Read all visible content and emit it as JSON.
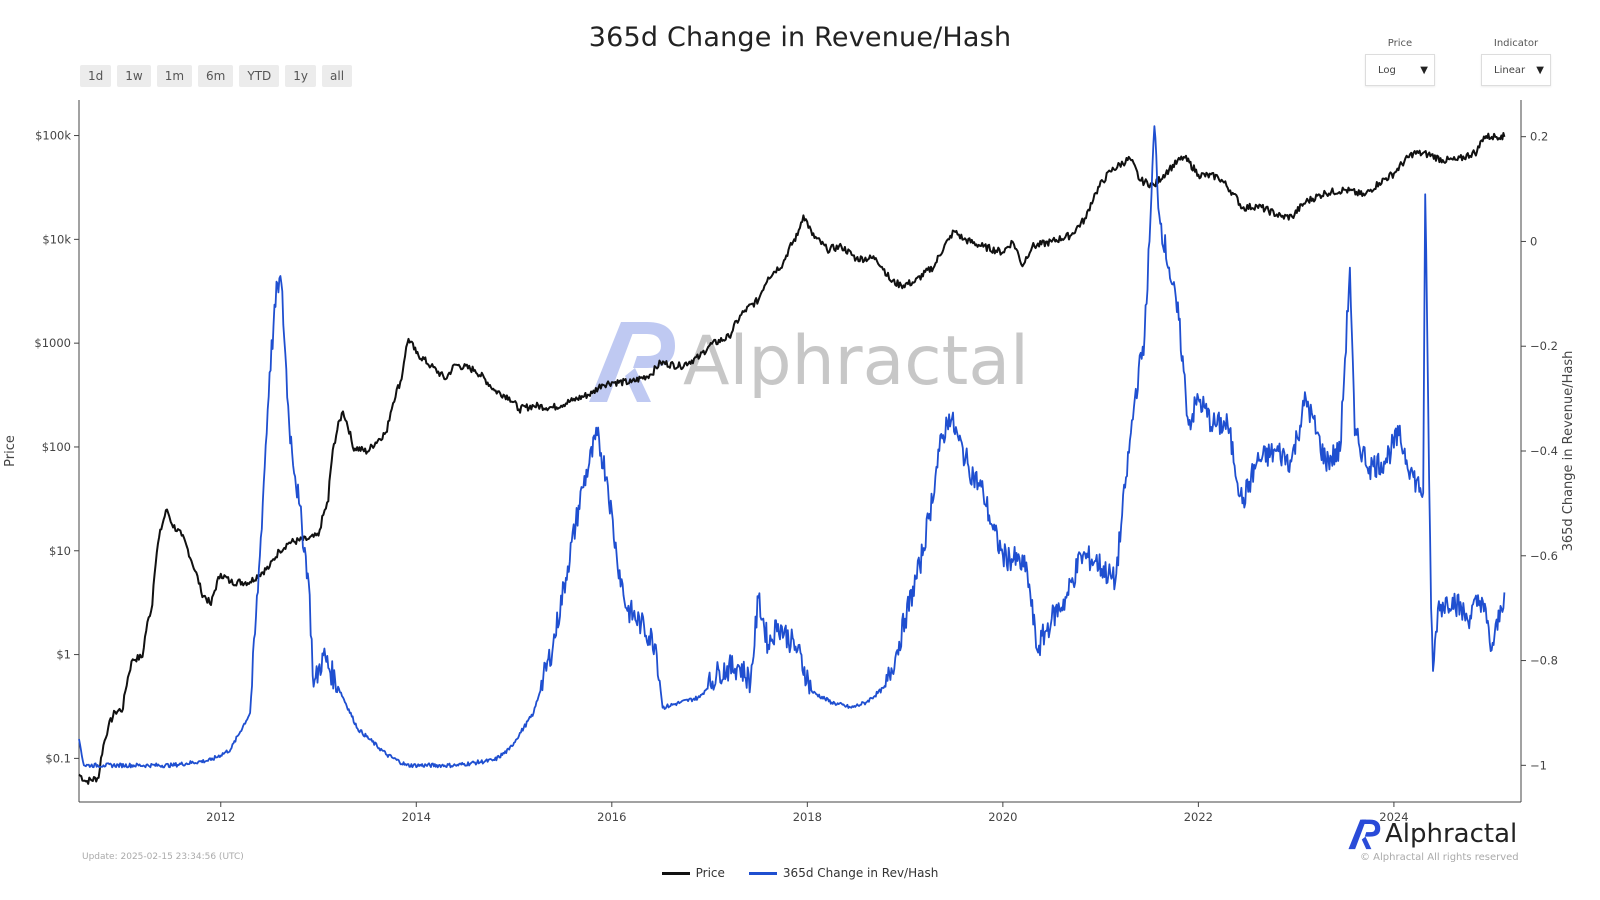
{
  "header": {
    "title": "365d Change in Revenue/Hash"
  },
  "range_buttons": [
    "1d",
    "1w",
    "1m",
    "6m",
    "YTD",
    "1y",
    "all"
  ],
  "controls": {
    "price": {
      "label": "Price",
      "value": "Log"
    },
    "indicator": {
      "label": "Indicator",
      "value": "Linear"
    }
  },
  "watermark": {
    "name": "Alphractal"
  },
  "footer": {
    "update": "Update: 2025-02-15 23:34:56 (UTC)",
    "brand": "Alphractal",
    "rights": "© Alphractal All rights reserved"
  },
  "colors": {
    "price": "#111111",
    "indicator": "#1f4fd0",
    "accent_logo": "#2a4bd8"
  },
  "chart_data": {
    "type": "line",
    "title": "365d Change in Revenue/Hash",
    "xlabel": "",
    "ylabel": "Price",
    "y2label": "365d Change in Revenue/Hash",
    "x_range": [
      2010.55,
      2025.3
    ],
    "x_ticks": [
      2012,
      2014,
      2016,
      2018,
      2020,
      2022,
      2024
    ],
    "x_tick_labels": [
      "2012",
      "2014",
      "2016",
      "2018",
      "2020",
      "2022",
      "2024"
    ],
    "y_scale": "log",
    "y_range": [
      0.038,
      220000
    ],
    "y_ticks": [
      0.1,
      1,
      10,
      100,
      1000,
      10000,
      100000
    ],
    "y_tick_labels": [
      "$0.1",
      "$1",
      "$10",
      "$100",
      "$1000",
      "$10k",
      "$100k"
    ],
    "y2_scale": "linear",
    "y2_range": [
      -1.07,
      0.27
    ],
    "y2_ticks": [
      0.2,
      0,
      -0.2,
      -0.4,
      -0.6,
      -0.8,
      -1
    ],
    "y2_tick_labels": [
      "0.2",
      "0",
      "−0.2",
      "−0.4",
      "−0.6",
      "−0.8",
      "−1"
    ],
    "legend": "bottom-center",
    "grid": false,
    "series": [
      {
        "name": "Price",
        "axis": "left",
        "points": [
          [
            2010.55,
            0.07
          ],
          [
            2010.62,
            0.06
          ],
          [
            2010.75,
            0.065
          ],
          [
            2010.85,
            0.2
          ],
          [
            2010.92,
            0.28
          ],
          [
            2011.0,
            0.3
          ],
          [
            2011.1,
            0.9
          ],
          [
            2011.2,
            0.95
          ],
          [
            2011.3,
            3
          ],
          [
            2011.45,
            25
          ],
          [
            2011.5,
            18
          ],
          [
            2011.6,
            14
          ],
          [
            2011.7,
            8
          ],
          [
            2011.8,
            4
          ],
          [
            2011.9,
            3
          ],
          [
            2012.0,
            6
          ],
          [
            2012.1,
            5
          ],
          [
            2012.3,
            5
          ],
          [
            2012.5,
            7
          ],
          [
            2012.6,
            10
          ],
          [
            2012.7,
            12
          ],
          [
            2012.9,
            13
          ],
          [
            2013.0,
            14
          ],
          [
            2013.1,
            30
          ],
          [
            2013.25,
            220
          ],
          [
            2013.35,
            100
          ],
          [
            2013.5,
            90
          ],
          [
            2013.7,
            140
          ],
          [
            2013.85,
            450
          ],
          [
            2013.92,
            1100
          ],
          [
            2014.0,
            800
          ],
          [
            2014.15,
            600
          ],
          [
            2014.3,
            450
          ],
          [
            2014.4,
            620
          ],
          [
            2014.6,
            550
          ],
          [
            2014.8,
            350
          ],
          [
            2014.95,
            300
          ],
          [
            2015.05,
            230
          ],
          [
            2015.2,
            250
          ],
          [
            2015.4,
            240
          ],
          [
            2015.6,
            280
          ],
          [
            2015.8,
            330
          ],
          [
            2015.9,
            400
          ],
          [
            2016.0,
            420
          ],
          [
            2016.2,
            420
          ],
          [
            2016.4,
            500
          ],
          [
            2016.5,
            650
          ],
          [
            2016.7,
            600
          ],
          [
            2016.9,
            740
          ],
          [
            2017.0,
            950
          ],
          [
            2017.2,
            1150
          ],
          [
            2017.35,
            2000
          ],
          [
            2017.5,
            2600
          ],
          [
            2017.6,
            4300
          ],
          [
            2017.75,
            5800
          ],
          [
            2017.9,
            11000
          ],
          [
            2017.96,
            17000
          ],
          [
            2018.05,
            11000
          ],
          [
            2018.2,
            8000
          ],
          [
            2018.35,
            8500
          ],
          [
            2018.5,
            6500
          ],
          [
            2018.7,
            6600
          ],
          [
            2018.85,
            4000
          ],
          [
            2018.96,
            3600
          ],
          [
            2019.1,
            3900
          ],
          [
            2019.3,
            5500
          ],
          [
            2019.45,
            10000
          ],
          [
            2019.5,
            12000
          ],
          [
            2019.6,
            10000
          ],
          [
            2019.8,
            8500
          ],
          [
            2020.0,
            7500
          ],
          [
            2020.1,
            9500
          ],
          [
            2020.2,
            5500
          ],
          [
            2020.3,
            8500
          ],
          [
            2020.5,
            9500
          ],
          [
            2020.7,
            11000
          ],
          [
            2020.85,
            16000
          ],
          [
            2020.95,
            28000
          ],
          [
            2021.1,
            45000
          ],
          [
            2021.3,
            60000
          ],
          [
            2021.4,
            37000
          ],
          [
            2021.55,
            33000
          ],
          [
            2021.7,
            47000
          ],
          [
            2021.85,
            62000
          ],
          [
            2022.0,
            42000
          ],
          [
            2022.2,
            40000
          ],
          [
            2022.35,
            28000
          ],
          [
            2022.45,
            20000
          ],
          [
            2022.6,
            21000
          ],
          [
            2022.85,
            16500
          ],
          [
            2022.96,
            16500
          ],
          [
            2023.1,
            23000
          ],
          [
            2023.3,
            28000
          ],
          [
            2023.5,
            30000
          ],
          [
            2023.7,
            26500
          ],
          [
            2023.85,
            35000
          ],
          [
            2024.0,
            43000
          ],
          [
            2024.2,
            68000
          ],
          [
            2024.35,
            66000
          ],
          [
            2024.5,
            58000
          ],
          [
            2024.65,
            58000
          ],
          [
            2024.85,
            70000
          ],
          [
            2024.92,
            98000
          ],
          [
            2025.0,
            97000
          ],
          [
            2025.1,
            100000
          ],
          [
            2025.13,
            97000
          ]
        ]
      },
      {
        "name": "365d Change in Rev/Hash",
        "axis": "right",
        "points": [
          [
            2010.55,
            -0.95
          ],
          [
            2010.6,
            -1.0
          ],
          [
            2010.8,
            -1.0
          ],
          [
            2011.5,
            -1.0
          ],
          [
            2011.9,
            -0.99
          ],
          [
            2012.1,
            -0.97
          ],
          [
            2012.3,
            -0.9
          ],
          [
            2012.4,
            -0.6
          ],
          [
            2012.5,
            -0.25
          ],
          [
            2012.58,
            -0.08
          ],
          [
            2012.62,
            -0.08
          ],
          [
            2012.7,
            -0.35
          ],
          [
            2012.8,
            -0.5
          ],
          [
            2012.9,
            -0.65
          ],
          [
            2012.95,
            -0.85
          ],
          [
            2013.05,
            -0.79
          ],
          [
            2013.2,
            -0.85
          ],
          [
            2013.4,
            -0.93
          ],
          [
            2013.7,
            -0.98
          ],
          [
            2013.9,
            -1.0
          ],
          [
            2014.4,
            -1.0
          ],
          [
            2014.8,
            -0.99
          ],
          [
            2014.95,
            -0.97
          ],
          [
            2015.2,
            -0.9
          ],
          [
            2015.4,
            -0.77
          ],
          [
            2015.55,
            -0.62
          ],
          [
            2015.7,
            -0.47
          ],
          [
            2015.85,
            -0.37
          ],
          [
            2015.95,
            -0.45
          ],
          [
            2016.05,
            -0.6
          ],
          [
            2016.15,
            -0.7
          ],
          [
            2016.3,
            -0.73
          ],
          [
            2016.45,
            -0.77
          ],
          [
            2016.52,
            -0.89
          ],
          [
            2016.7,
            -0.88
          ],
          [
            2016.9,
            -0.87
          ],
          [
            2017.1,
            -0.82
          ],
          [
            2017.3,
            -0.81
          ],
          [
            2017.42,
            -0.84
          ],
          [
            2017.5,
            -0.68
          ],
          [
            2017.6,
            -0.77
          ],
          [
            2017.7,
            -0.73
          ],
          [
            2017.9,
            -0.78
          ],
          [
            2018.05,
            -0.86
          ],
          [
            2018.25,
            -0.88
          ],
          [
            2018.45,
            -0.89
          ],
          [
            2018.6,
            -0.88
          ],
          [
            2018.8,
            -0.85
          ],
          [
            2018.92,
            -0.78
          ],
          [
            2019.0,
            -0.72
          ],
          [
            2019.15,
            -0.62
          ],
          [
            2019.25,
            -0.52
          ],
          [
            2019.35,
            -0.4
          ],
          [
            2019.45,
            -0.33
          ],
          [
            2019.55,
            -0.38
          ],
          [
            2019.65,
            -0.43
          ],
          [
            2019.8,
            -0.48
          ],
          [
            2019.9,
            -0.55
          ],
          [
            2020.0,
            -0.6
          ],
          [
            2020.15,
            -0.61
          ],
          [
            2020.25,
            -0.63
          ],
          [
            2020.35,
            -0.78
          ],
          [
            2020.5,
            -0.72
          ],
          [
            2020.65,
            -0.68
          ],
          [
            2020.8,
            -0.6
          ],
          [
            2020.95,
            -0.61
          ],
          [
            2021.15,
            -0.65
          ],
          [
            2021.25,
            -0.47
          ],
          [
            2021.35,
            -0.3
          ],
          [
            2021.45,
            -0.18
          ],
          [
            2021.5,
            0.0
          ],
          [
            2021.55,
            0.22
          ],
          [
            2021.6,
            0.05
          ],
          [
            2021.7,
            -0.05
          ],
          [
            2021.8,
            -0.15
          ],
          [
            2021.9,
            -0.35
          ],
          [
            2022.0,
            -0.3
          ],
          [
            2022.15,
            -0.35
          ],
          [
            2022.3,
            -0.35
          ],
          [
            2022.45,
            -0.5
          ],
          [
            2022.6,
            -0.42
          ],
          [
            2022.8,
            -0.4
          ],
          [
            2022.95,
            -0.42
          ],
          [
            2023.1,
            -0.3
          ],
          [
            2023.3,
            -0.42
          ],
          [
            2023.45,
            -0.4
          ],
          [
            2023.55,
            -0.05
          ],
          [
            2023.6,
            -0.37
          ],
          [
            2023.75,
            -0.43
          ],
          [
            2023.9,
            -0.42
          ],
          [
            2024.05,
            -0.37
          ],
          [
            2024.2,
            -0.45
          ],
          [
            2024.3,
            -0.48
          ],
          [
            2024.32,
            0.09
          ],
          [
            2024.38,
            -0.7
          ],
          [
            2024.4,
            -0.82
          ],
          [
            2024.45,
            -0.7
          ],
          [
            2024.6,
            -0.68
          ],
          [
            2024.75,
            -0.72
          ],
          [
            2024.9,
            -0.68
          ],
          [
            2025.0,
            -0.78
          ],
          [
            2025.1,
            -0.7
          ],
          [
            2025.13,
            -0.67
          ]
        ]
      }
    ]
  }
}
